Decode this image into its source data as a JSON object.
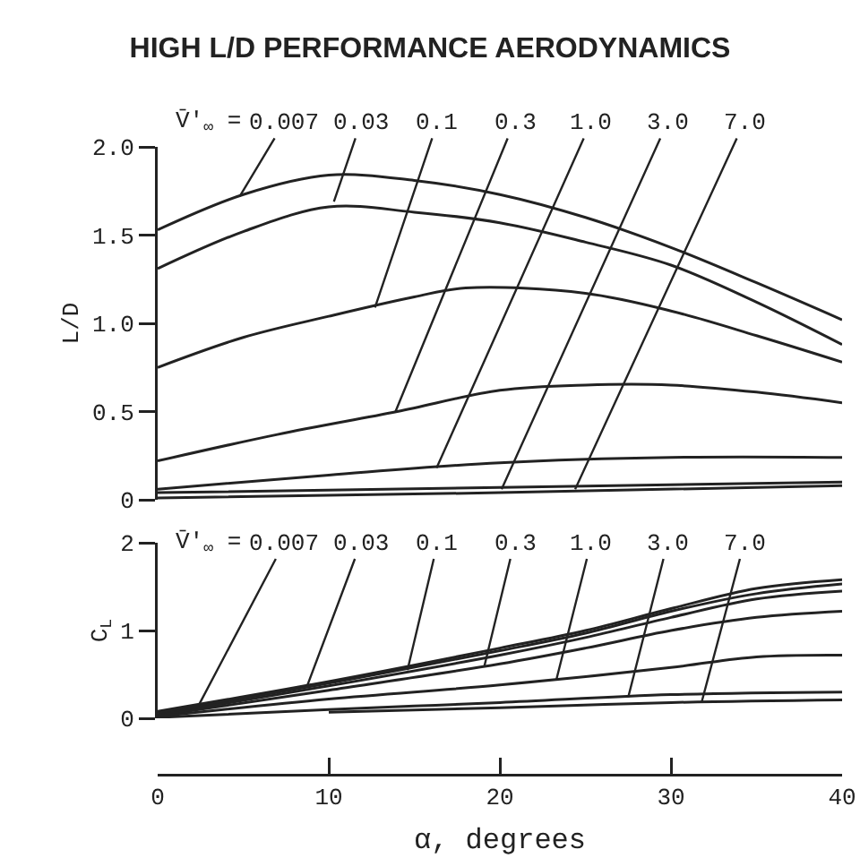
{
  "chart_data": [
    {
      "type": "line",
      "title": "HIGH L/D PERFORMANCE AERODYNAMICS",
      "ylabel": "L/D",
      "xlim": [
        0,
        40
      ],
      "ylim": [
        0,
        2
      ],
      "yticks": [
        0,
        0.5,
        {
          "value": 1,
          "label": "1.0"
        },
        1.5,
        {
          "value": 2,
          "label": "2.0"
        }
      ],
      "tick_labels": "y",
      "grid": false,
      "legend": false,
      "annotations": [
        "V̄′$_{∞}$ =",
        {
          "text": "0.007",
          "x": 4.8,
          "y": 1.72
        },
        {
          "text": "0.03",
          "x": 10.3,
          "y": 1.69
        },
        {
          "text": "0.1",
          "x": 12.7,
          "y": 1.09
        },
        {
          "text": "0.3",
          "x": 13.9,
          "y": 0.5
        },
        {
          "text": "1.0",
          "x": 16.3,
          "y": 0.18
        },
        {
          "text": "3.0",
          "x": 20.1,
          "y": 0.06
        },
        {
          "text": "7.0",
          "x": 24.4,
          "y": 0.06
        }
      ],
      "series": [
        {
          "color": "#222222",
          "x": [
            0,
            5,
            10,
            15,
            20,
            25,
            30,
            35,
            40
          ],
          "values": [
            1.53,
            1.73,
            1.84,
            1.81,
            1.73,
            1.6,
            1.43,
            1.23,
            1.02
          ]
        },
        {
          "color": "#222222",
          "x": [
            0,
            5,
            10,
            15,
            20,
            25,
            30,
            35,
            40
          ],
          "values": [
            1.31,
            1.52,
            1.66,
            1.63,
            1.57,
            1.46,
            1.33,
            1.12,
            0.88
          ]
        },
        {
          "color": "#222222",
          "x": [
            0,
            5,
            10,
            15,
            18,
            25,
            30,
            35,
            40
          ],
          "values": [
            0.75,
            0.92,
            1.04,
            1.15,
            1.2,
            1.17,
            1.07,
            0.93,
            0.78
          ]
        },
        {
          "color": "#222222",
          "x": [
            0,
            7,
            14,
            20,
            25,
            30,
            35,
            40
          ],
          "values": [
            0.22,
            0.37,
            0.5,
            0.62,
            0.65,
            0.65,
            0.61,
            0.55
          ]
        },
        {
          "color": "#222222",
          "x": [
            0,
            10,
            20,
            30,
            40
          ],
          "values": [
            0.06,
            0.14,
            0.21,
            0.24,
            0.24
          ]
        },
        {
          "color": "#222222",
          "x": [
            0,
            20,
            40
          ],
          "values": [
            0.04,
            0.07,
            0.1
          ]
        },
        {
          "color": "#222222",
          "x": [
            0,
            20,
            40
          ],
          "values": [
            0.01,
            0.04,
            0.08
          ]
        }
      ]
    },
    {
      "type": "line",
      "xlabel": "α, degrees",
      "ylabel": "C$_{L}$",
      "xlim": [
        0,
        40
      ],
      "xticks": [
        0,
        10,
        20,
        30,
        40
      ],
      "ylim": [
        0,
        2
      ],
      "yticks": [
        0,
        1,
        2
      ],
      "grid": false,
      "legend": false,
      "annotations": [
        "V̄′$_{∞}$ =",
        {
          "text": "0.007",
          "x": 2.4,
          "y": 0.15
        },
        {
          "text": "0.03",
          "x": 8.7,
          "y": 0.35
        },
        {
          "text": "0.1",
          "x": 14.6,
          "y": 0.55
        },
        {
          "text": "0.3",
          "x": 19.1,
          "y": 0.6
        },
        {
          "text": "1.0",
          "x": 23.3,
          "y": 0.44
        },
        {
          "text": "3.0",
          "x": 27.5,
          "y": 0.24
        },
        {
          "text": "7.0",
          "x": 31.8,
          "y": 0.19
        }
      ],
      "series": [
        {
          "color": "#222222",
          "x": [
            0,
            10,
            20,
            25,
            30,
            35,
            40
          ],
          "values": [
            0.08,
            0.42,
            0.8,
            1.0,
            1.25,
            1.48,
            1.58
          ]
        },
        {
          "color": "#222222",
          "x": [
            0,
            10,
            20,
            25,
            30,
            35,
            40
          ],
          "values": [
            0.06,
            0.4,
            0.77,
            0.97,
            1.22,
            1.42,
            1.53
          ]
        },
        {
          "color": "#222222",
          "x": [
            0,
            10,
            20,
            25,
            30,
            35,
            40
          ],
          "values": [
            0.04,
            0.37,
            0.72,
            0.92,
            1.15,
            1.36,
            1.45
          ]
        },
        {
          "color": "#222222",
          "x": [
            0,
            10,
            20,
            25,
            30,
            35,
            40
          ],
          "values": [
            0.03,
            0.32,
            0.62,
            0.8,
            1.0,
            1.15,
            1.22
          ]
        },
        {
          "color": "#222222",
          "x": [
            0,
            10,
            20,
            30,
            35,
            40
          ],
          "values": [
            0.02,
            0.22,
            0.38,
            0.58,
            0.7,
            0.72
          ]
        },
        {
          "color": "#222222",
          "x": [
            0,
            10,
            20,
            30,
            40
          ],
          "values": [
            0.01,
            0.1,
            0.18,
            0.27,
            0.3
          ]
        },
        {
          "color": "#222222",
          "x": [
            10,
            20,
            30,
            40
          ],
          "values": [
            0.07,
            0.12,
            0.18,
            0.21
          ]
        }
      ]
    }
  ]
}
